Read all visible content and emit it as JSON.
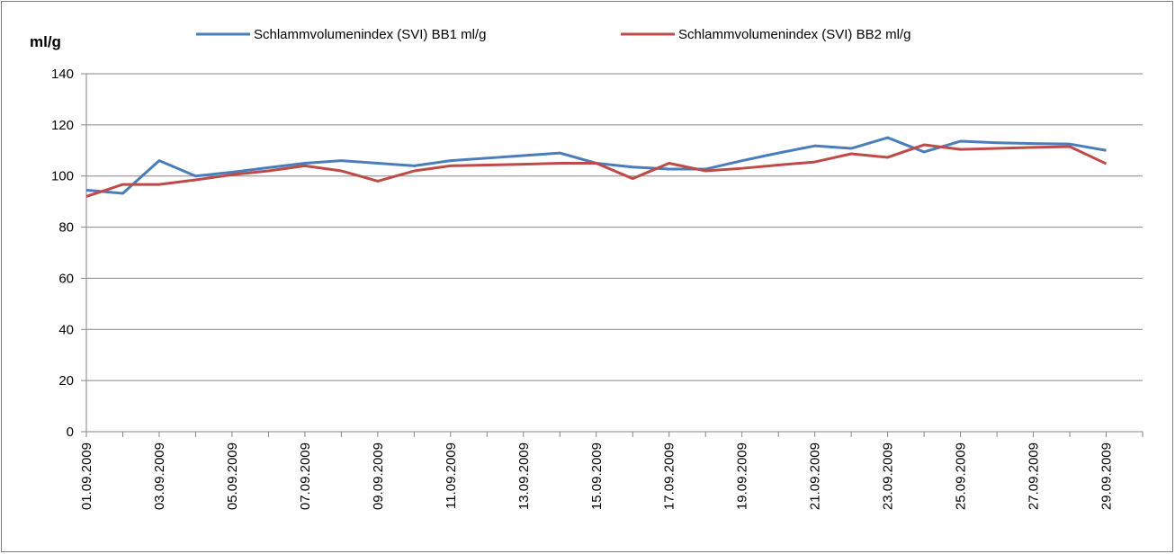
{
  "chart_data": {
    "type": "line",
    "y_label": "ml/g",
    "categories": [
      "01.09.2009",
      null,
      "03.09.2009",
      null,
      "05.09.2009",
      null,
      "07.09.2009",
      null,
      "09.09.2009",
      null,
      "11.09.2009",
      null,
      "13.09.2009",
      null,
      "15.09.2009",
      null,
      "17.09.2009",
      null,
      "19.09.2009",
      null,
      "21.09.2009",
      null,
      "23.09.2009",
      null,
      "25.09.2009",
      null,
      "27.09.2009",
      null,
      "29.09.2009",
      null
    ],
    "series": [
      {
        "name": "Schlammvolumenindex (SVI) BB1 ml/g",
        "color": "#4a7ebb",
        "values": [
          94.5,
          93.2,
          106,
          100,
          101.5,
          103.3,
          105,
          106,
          105,
          104,
          106,
          107,
          108,
          109,
          105,
          103.5,
          102.7,
          102.7,
          106,
          109,
          111.8,
          110.8,
          115,
          109.4,
          113.6,
          113,
          112.7,
          112.5,
          110,
          null
        ]
      },
      {
        "name": "Schlammvolumenindex (SVI) BB2 ml/g",
        "color": "#be4b48",
        "values": [
          92,
          96.7,
          96.7,
          98.5,
          100.5,
          102,
          104,
          102,
          98,
          102,
          104,
          104.3,
          104.6,
          105,
          105,
          99,
          105,
          102,
          103,
          104.3,
          105.5,
          108.7,
          107.3,
          112.2,
          110.4,
          110.8,
          111.2,
          111.5,
          104.8,
          null
        ]
      }
    ],
    "ylim": [
      0,
      140
    ],
    "yticks": [
      0,
      20,
      40,
      60,
      80,
      100,
      120,
      140
    ],
    "grid": true,
    "legend": "top"
  }
}
